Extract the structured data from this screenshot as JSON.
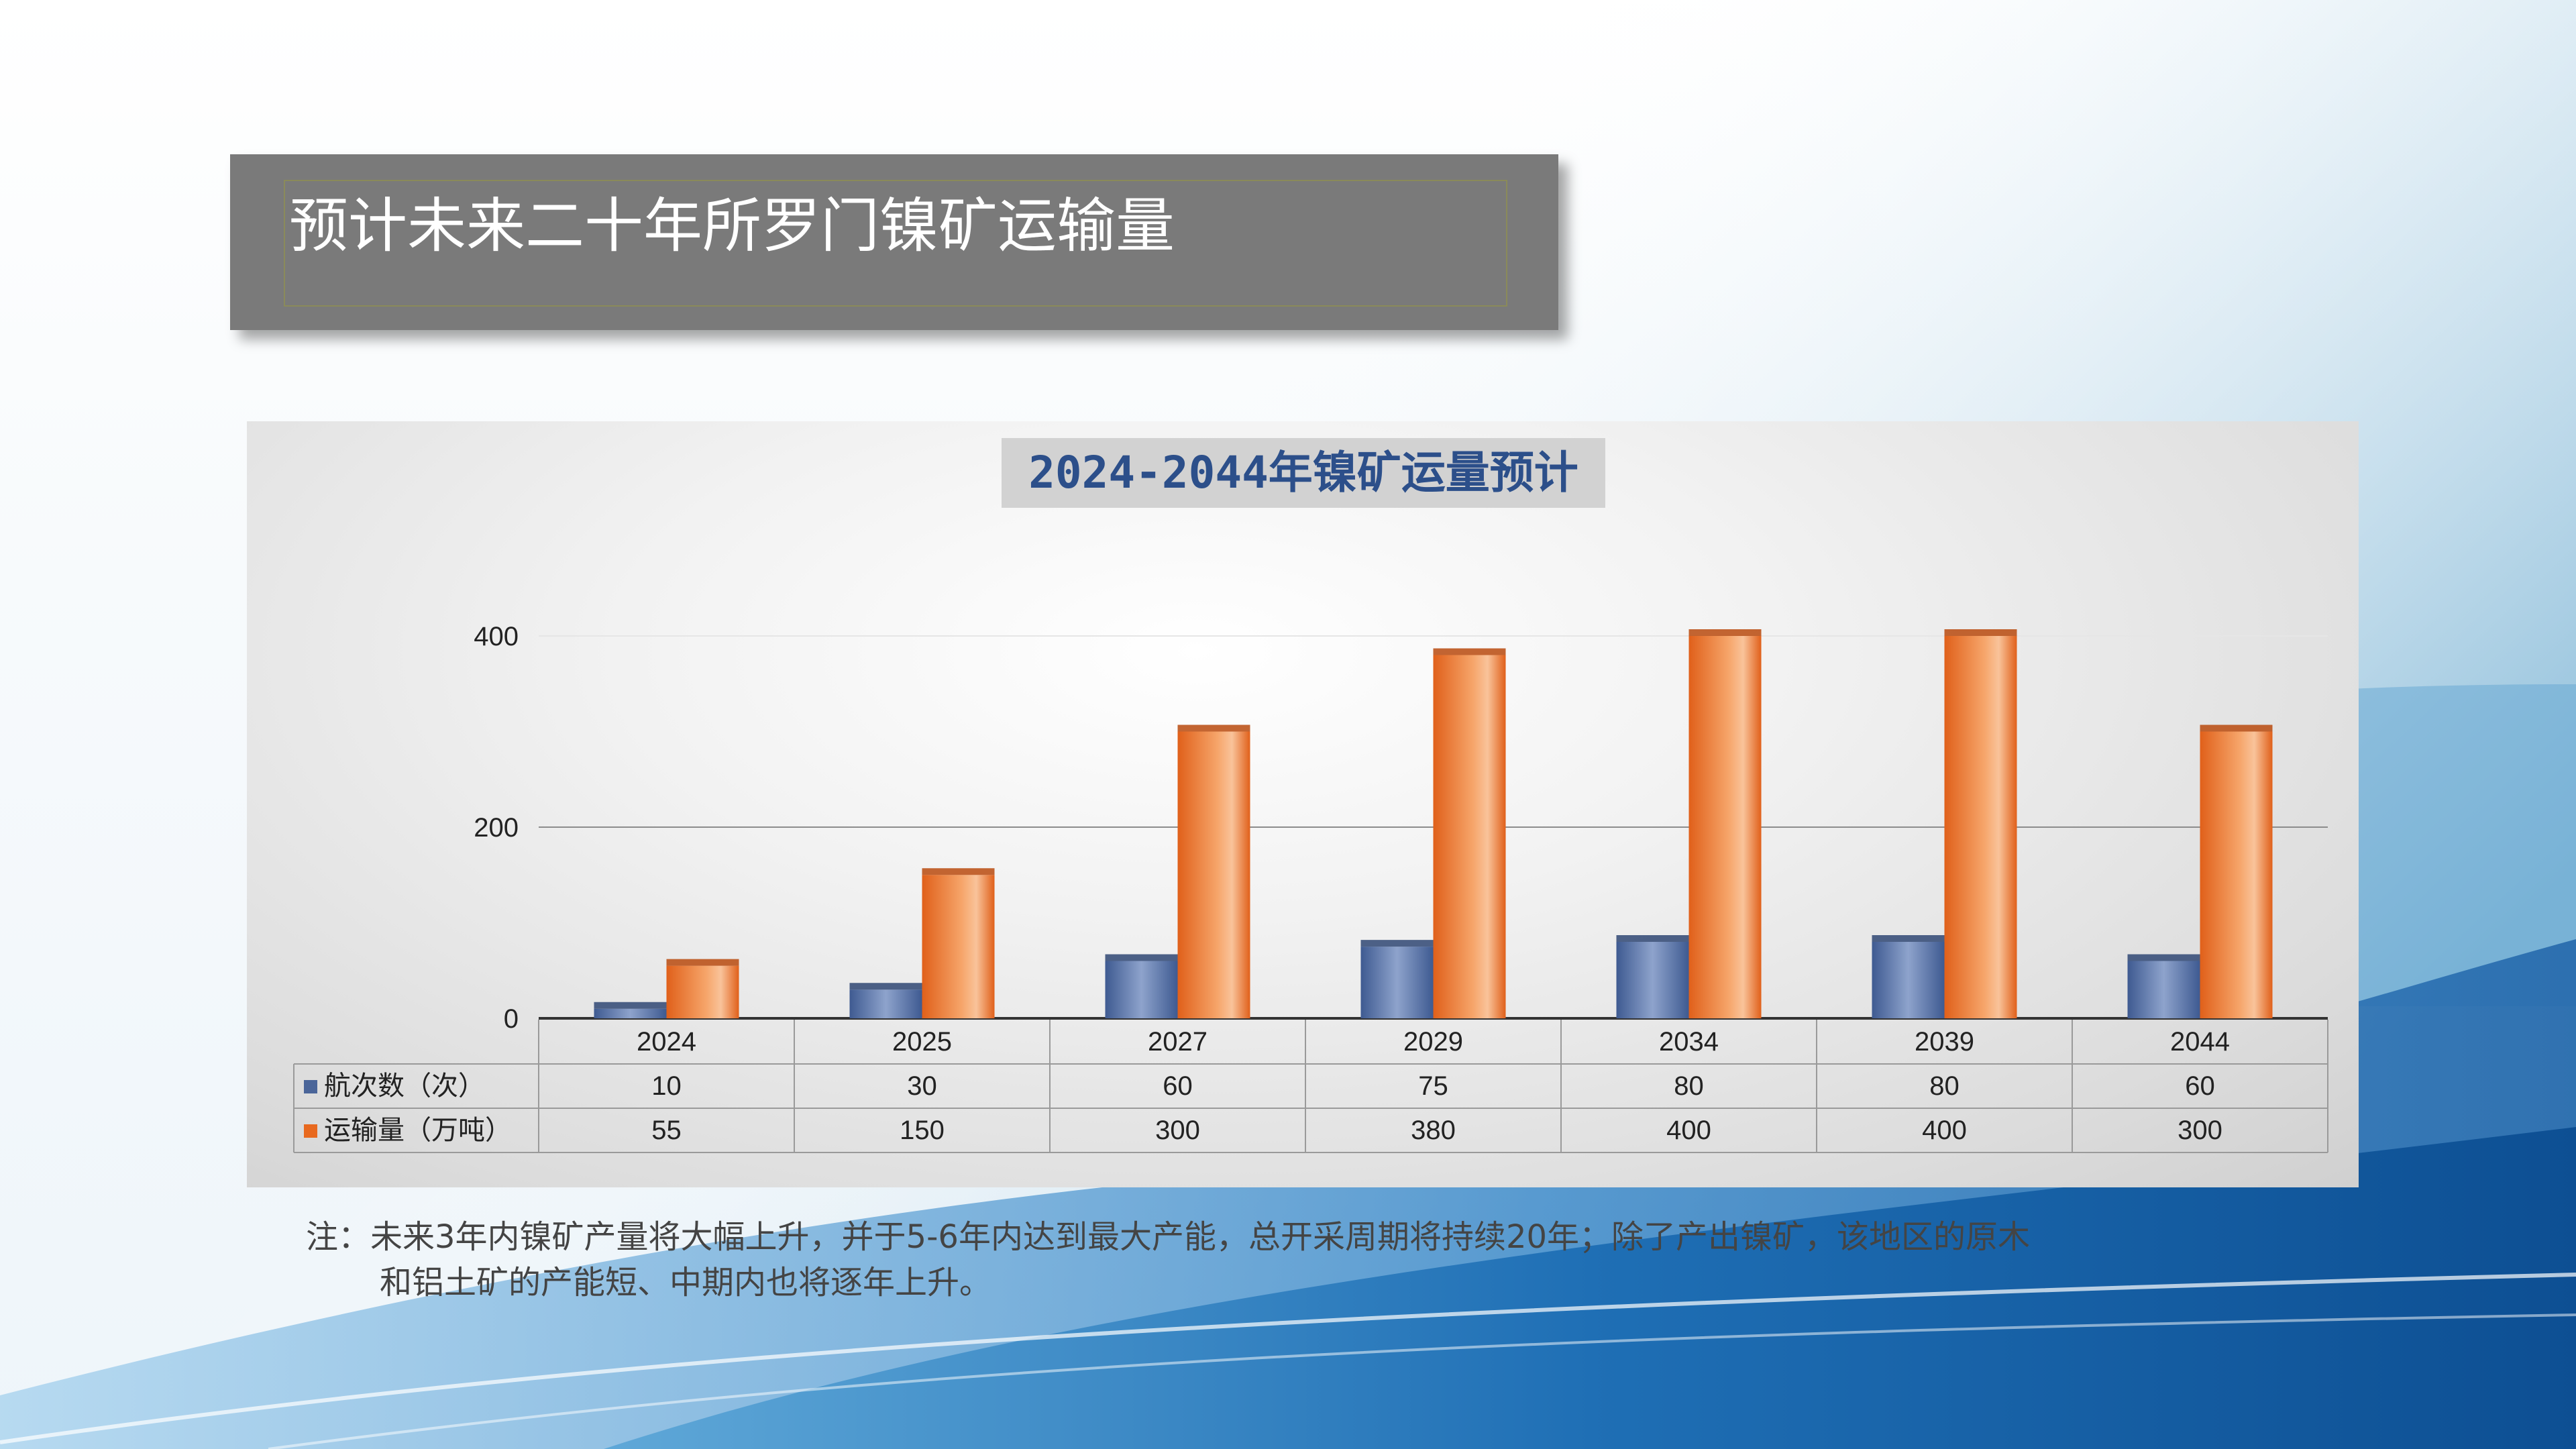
{
  "slide": {
    "title": "预计未来二十年所罗门镍矿运输量",
    "note_line1": "注：未来3年内镍矿产量将大幅上升，并于5-6年内达到最大产能，总开采周期将持续20年；除了产出镍矿，该地区的原木",
    "note_line2": "和铝土矿的产能短、中期内也将逐年上升。"
  },
  "chart_data": {
    "type": "bar",
    "title": "2024-2044年镍矿运量预计",
    "categories": [
      "2024",
      "2025",
      "2027",
      "2029",
      "2034",
      "2039",
      "2044"
    ],
    "series": [
      {
        "name": "航次数（次）",
        "values": [
          10,
          30,
          60,
          75,
          80,
          80,
          60
        ],
        "color": "#4a6599"
      },
      {
        "name": "运输量（万吨）",
        "values": [
          55,
          150,
          300,
          380,
          400,
          400,
          300
        ],
        "color": "#e8691f"
      }
    ],
    "ylim": [
      0,
      400
    ],
    "yticks": [
      0,
      200,
      400
    ],
    "grid": true,
    "legend": "data-table",
    "data_table": true
  }
}
